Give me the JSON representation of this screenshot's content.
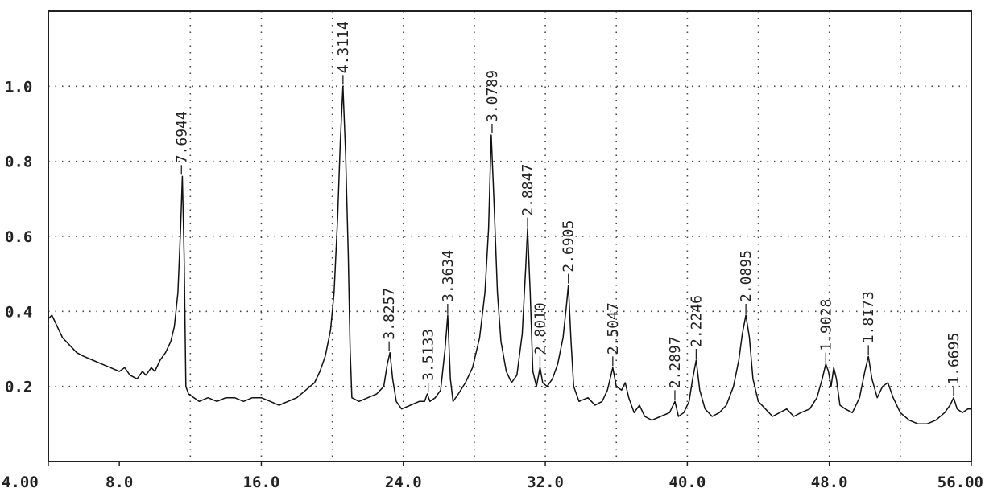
{
  "chart_data": {
    "type": "line",
    "title": "",
    "xlabel": "",
    "ylabel": "",
    "xlim": [
      4.0,
      56.0
    ],
    "ylim": [
      0.0,
      1.2
    ],
    "grid": true,
    "x_ticks": [
      {
        "value": 4.0,
        "label": "4.00"
      },
      {
        "value": 8.0,
        "label": "8.0"
      },
      {
        "value": 16.0,
        "label": "16.0"
      },
      {
        "value": 24.0,
        "label": "24.0"
      },
      {
        "value": 32.0,
        "label": "32.0"
      },
      {
        "value": 40.0,
        "label": "40.0"
      },
      {
        "value": 48.0,
        "label": "48.0"
      },
      {
        "value": 56.0,
        "label": "56.00"
      }
    ],
    "x_grid": [
      12.0,
      16.0,
      20.0,
      24.0,
      28.0,
      32.0,
      36.0,
      40.0,
      44.0,
      48.0,
      52.0
    ],
    "y_ticks": [
      {
        "value": 0.2,
        "label": "0.2"
      },
      {
        "value": 0.4,
        "label": "0.4"
      },
      {
        "value": 0.6,
        "label": "0.6"
      },
      {
        "value": 0.8,
        "label": "0.8"
      },
      {
        "value": 1.0,
        "label": "1.0"
      }
    ],
    "peaks": [
      {
        "x": 11.5,
        "y": 0.76,
        "label": "7.6944"
      },
      {
        "x": 20.6,
        "y": 1.0,
        "label": "4.3114"
      },
      {
        "x": 23.2,
        "y": 0.29,
        "label": "3.8257"
      },
      {
        "x": 25.4,
        "y": 0.18,
        "label": "3.5133"
      },
      {
        "x": 26.5,
        "y": 0.39,
        "label": "3.3634"
      },
      {
        "x": 29.0,
        "y": 0.87,
        "label": "3.0789"
      },
      {
        "x": 31.0,
        "y": 0.62,
        "label": "2.8847"
      },
      {
        "x": 31.7,
        "y": 0.25,
        "label": "2.8010"
      },
      {
        "x": 33.3,
        "y": 0.47,
        "label": "2.6905"
      },
      {
        "x": 35.8,
        "y": 0.25,
        "label": "2.5047"
      },
      {
        "x": 39.3,
        "y": 0.16,
        "label": "2.2897"
      },
      {
        "x": 40.5,
        "y": 0.27,
        "label": "2.2246"
      },
      {
        "x": 43.3,
        "y": 0.39,
        "label": "2.0895"
      },
      {
        "x": 47.8,
        "y": 0.26,
        "label": "1.9028"
      },
      {
        "x": 50.2,
        "y": 0.28,
        "label": "1.8173"
      },
      {
        "x": 55.0,
        "y": 0.17,
        "label": "1.6695"
      }
    ],
    "series": [
      {
        "points": [
          [
            4.0,
            0.38
          ],
          [
            4.2,
            0.39
          ],
          [
            4.5,
            0.36
          ],
          [
            4.8,
            0.33
          ],
          [
            5.2,
            0.31
          ],
          [
            5.6,
            0.29
          ],
          [
            6.0,
            0.28
          ],
          [
            6.5,
            0.27
          ],
          [
            7.0,
            0.26
          ],
          [
            7.5,
            0.25
          ],
          [
            8.0,
            0.24
          ],
          [
            8.3,
            0.25
          ],
          [
            8.6,
            0.23
          ],
          [
            9.0,
            0.22
          ],
          [
            9.3,
            0.24
          ],
          [
            9.5,
            0.23
          ],
          [
            9.8,
            0.25
          ],
          [
            10.0,
            0.24
          ],
          [
            10.3,
            0.27
          ],
          [
            10.6,
            0.29
          ],
          [
            10.9,
            0.32
          ],
          [
            11.1,
            0.36
          ],
          [
            11.3,
            0.45
          ],
          [
            11.45,
            0.62
          ],
          [
            11.55,
            0.76
          ],
          [
            11.65,
            0.55
          ],
          [
            11.75,
            0.2
          ],
          [
            11.9,
            0.18
          ],
          [
            12.5,
            0.16
          ],
          [
            13.0,
            0.17
          ],
          [
            13.5,
            0.16
          ],
          [
            14.0,
            0.17
          ],
          [
            14.5,
            0.17
          ],
          [
            15.0,
            0.16
          ],
          [
            15.5,
            0.17
          ],
          [
            16.0,
            0.17
          ],
          [
            16.5,
            0.16
          ],
          [
            17.0,
            0.15
          ],
          [
            17.5,
            0.16
          ],
          [
            18.0,
            0.17
          ],
          [
            18.5,
            0.19
          ],
          [
            19.0,
            0.21
          ],
          [
            19.3,
            0.24
          ],
          [
            19.6,
            0.28
          ],
          [
            19.9,
            0.35
          ],
          [
            20.1,
            0.45
          ],
          [
            20.3,
            0.65
          ],
          [
            20.45,
            0.85
          ],
          [
            20.6,
            1.0
          ],
          [
            20.75,
            0.82
          ],
          [
            20.9,
            0.55
          ],
          [
            21.0,
            0.3
          ],
          [
            21.1,
            0.17
          ],
          [
            21.5,
            0.16
          ],
          [
            22.0,
            0.17
          ],
          [
            22.5,
            0.18
          ],
          [
            22.9,
            0.2
          ],
          [
            23.1,
            0.26
          ],
          [
            23.25,
            0.29
          ],
          [
            23.4,
            0.22
          ],
          [
            23.6,
            0.16
          ],
          [
            23.9,
            0.14
          ],
          [
            24.4,
            0.15
          ],
          [
            24.9,
            0.16
          ],
          [
            25.2,
            0.16
          ],
          [
            25.35,
            0.18
          ],
          [
            25.5,
            0.16
          ],
          [
            25.8,
            0.17
          ],
          [
            26.1,
            0.19
          ],
          [
            26.35,
            0.3
          ],
          [
            26.5,
            0.39
          ],
          [
            26.65,
            0.22
          ],
          [
            26.8,
            0.16
          ],
          [
            27.1,
            0.18
          ],
          [
            27.5,
            0.21
          ],
          [
            27.9,
            0.25
          ],
          [
            28.3,
            0.33
          ],
          [
            28.6,
            0.45
          ],
          [
            28.8,
            0.62
          ],
          [
            28.95,
            0.87
          ],
          [
            29.1,
            0.7
          ],
          [
            29.3,
            0.45
          ],
          [
            29.5,
            0.32
          ],
          [
            29.8,
            0.24
          ],
          [
            30.1,
            0.21
          ],
          [
            30.4,
            0.23
          ],
          [
            30.7,
            0.34
          ],
          [
            30.9,
            0.52
          ],
          [
            31.0,
            0.62
          ],
          [
            31.15,
            0.45
          ],
          [
            31.3,
            0.24
          ],
          [
            31.5,
            0.2
          ],
          [
            31.7,
            0.25
          ],
          [
            31.85,
            0.21
          ],
          [
            32.1,
            0.2
          ],
          [
            32.4,
            0.22
          ],
          [
            32.7,
            0.26
          ],
          [
            33.0,
            0.33
          ],
          [
            33.2,
            0.42
          ],
          [
            33.3,
            0.47
          ],
          [
            33.45,
            0.32
          ],
          [
            33.6,
            0.2
          ],
          [
            33.9,
            0.16
          ],
          [
            34.4,
            0.17
          ],
          [
            34.8,
            0.15
          ],
          [
            35.2,
            0.16
          ],
          [
            35.5,
            0.19
          ],
          [
            35.8,
            0.25
          ],
          [
            36.0,
            0.2
          ],
          [
            36.3,
            0.19
          ],
          [
            36.5,
            0.21
          ],
          [
            36.7,
            0.17
          ],
          [
            37.0,
            0.13
          ],
          [
            37.3,
            0.15
          ],
          [
            37.6,
            0.12
          ],
          [
            38.0,
            0.11
          ],
          [
            38.5,
            0.12
          ],
          [
            39.0,
            0.13
          ],
          [
            39.3,
            0.16
          ],
          [
            39.5,
            0.12
          ],
          [
            39.8,
            0.13
          ],
          [
            40.1,
            0.16
          ],
          [
            40.3,
            0.22
          ],
          [
            40.5,
            0.27
          ],
          [
            40.7,
            0.19
          ],
          [
            41.0,
            0.14
          ],
          [
            41.4,
            0.12
          ],
          [
            41.8,
            0.13
          ],
          [
            42.2,
            0.15
          ],
          [
            42.6,
            0.2
          ],
          [
            42.9,
            0.27
          ],
          [
            43.1,
            0.34
          ],
          [
            43.3,
            0.39
          ],
          [
            43.5,
            0.33
          ],
          [
            43.7,
            0.22
          ],
          [
            44.0,
            0.16
          ],
          [
            44.4,
            0.14
          ],
          [
            44.8,
            0.12
          ],
          [
            45.2,
            0.13
          ],
          [
            45.6,
            0.14
          ],
          [
            46.0,
            0.12
          ],
          [
            46.4,
            0.13
          ],
          [
            46.9,
            0.14
          ],
          [
            47.3,
            0.17
          ],
          [
            47.6,
            0.22
          ],
          [
            47.8,
            0.26
          ],
          [
            47.95,
            0.24
          ],
          [
            48.1,
            0.2
          ],
          [
            48.25,
            0.25
          ],
          [
            48.4,
            0.22
          ],
          [
            48.6,
            0.15
          ],
          [
            48.9,
            0.14
          ],
          [
            49.3,
            0.13
          ],
          [
            49.7,
            0.17
          ],
          [
            50.0,
            0.24
          ],
          [
            50.2,
            0.28
          ],
          [
            50.4,
            0.22
          ],
          [
            50.7,
            0.17
          ],
          [
            51.0,
            0.2
          ],
          [
            51.3,
            0.21
          ],
          [
            51.6,
            0.17
          ],
          [
            52.0,
            0.13
          ],
          [
            52.5,
            0.11
          ],
          [
            53.0,
            0.1
          ],
          [
            53.5,
            0.1
          ],
          [
            54.0,
            0.11
          ],
          [
            54.5,
            0.13
          ],
          [
            54.8,
            0.15
          ],
          [
            55.0,
            0.17
          ],
          [
            55.2,
            0.14
          ],
          [
            55.5,
            0.13
          ],
          [
            55.8,
            0.14
          ],
          [
            56.0,
            0.14
          ]
        ]
      }
    ]
  }
}
